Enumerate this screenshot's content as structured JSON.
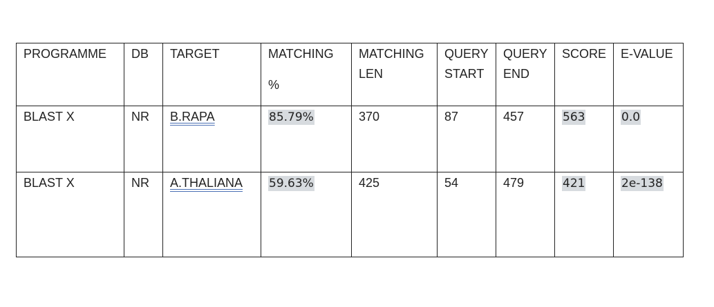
{
  "table": {
    "headers": {
      "programme": "PROGRAMME",
      "db": "DB",
      "target": "TARGET",
      "matching_pct_line1": "MATCHING",
      "matching_pct_line2": "%",
      "matching_len_line1": "MATCHING",
      "matching_len_line2": "LEN",
      "query_start_line1": "QUERY",
      "query_start_line2": "START",
      "query_end_line1": "QUERY",
      "query_end_line2": "END",
      "score": "SCORE",
      "evalue": "E-VALUE"
    },
    "rows": [
      {
        "programme": "BLAST X",
        "db": "NR",
        "target": "B.RAPA",
        "matching_pct": "85.79%",
        "matching_len": "370",
        "query_start": "87",
        "query_end": "457",
        "score": "563",
        "evalue": "0.0"
      },
      {
        "programme": "BLAST X",
        "db": "NR",
        "target": "A.THALIANA",
        "matching_pct": "59.63%",
        "matching_len": "425",
        "query_start": "54",
        "query_end": "479",
        "score": "421",
        "evalue": "2e-138"
      }
    ]
  },
  "colors": {
    "highlight": "#d7dbdf",
    "border": "#222222",
    "link_underline": "#4a6fb4"
  }
}
